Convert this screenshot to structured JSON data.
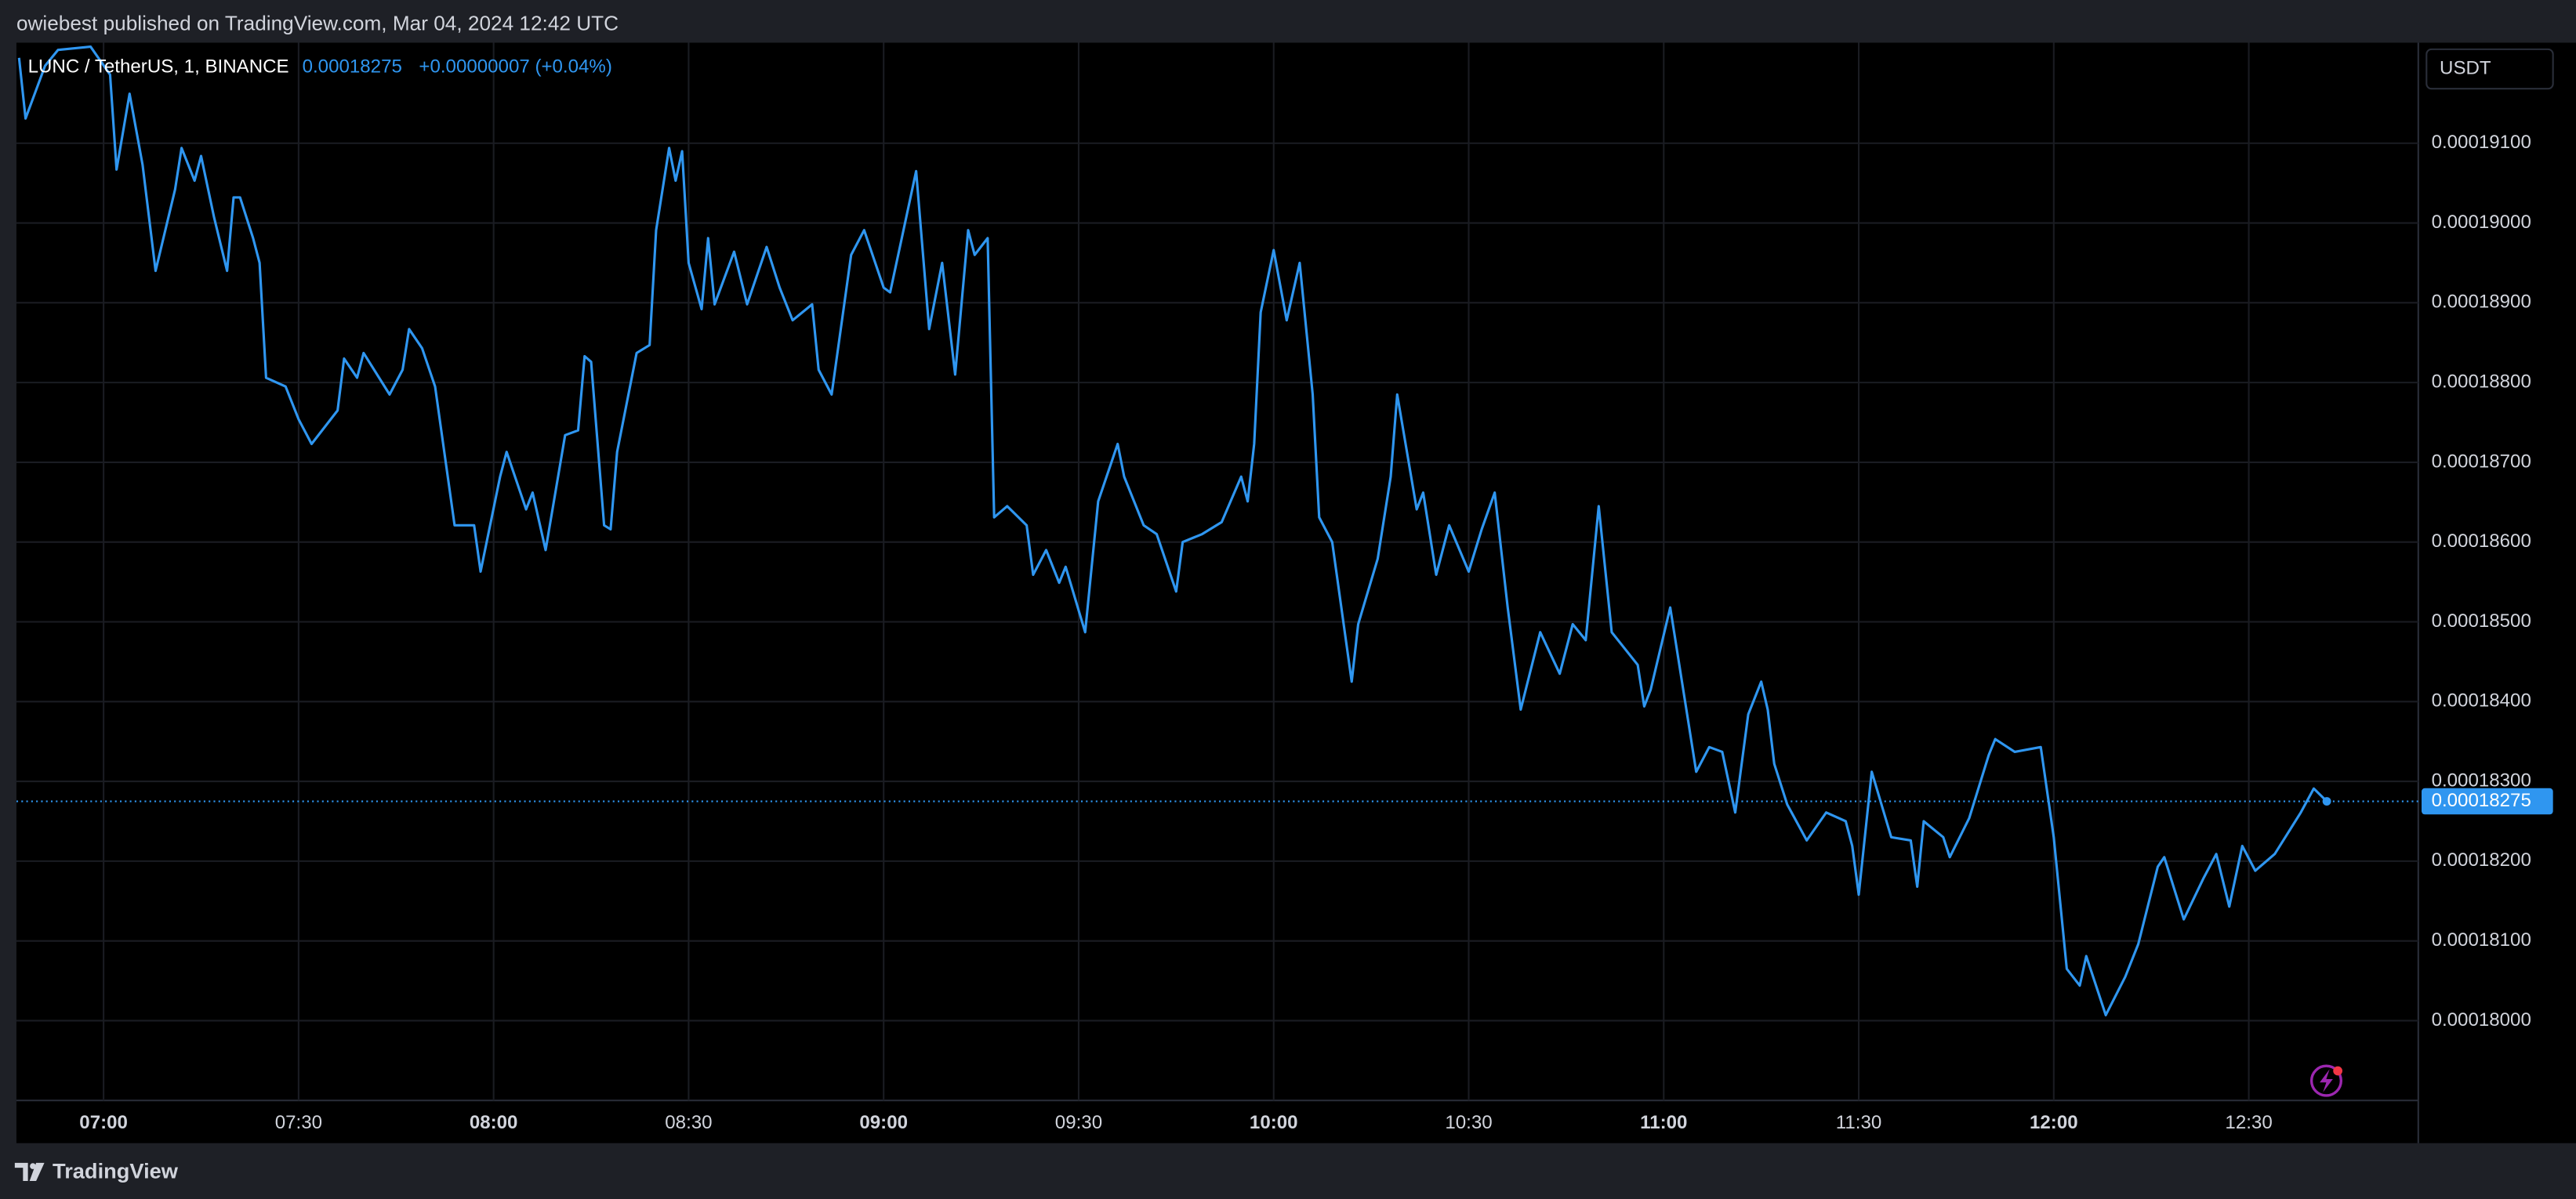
{
  "header": {
    "text": "owiebest published on TradingView.com, Mar 04, 2024 12:42 UTC"
  },
  "footer": {
    "brand": "TradingView"
  },
  "chart_data": {
    "type": "line",
    "symbol": "LUNC / TetherUS, 1, BINANCE",
    "last_price": 0.00018275,
    "change": "+0.00000007 (+0.04%)",
    "currency": "USDT",
    "x": [
      "06:47",
      "06:48",
      "06:51",
      "06:53",
      "06:58",
      "07:01",
      "07:02",
      "07:04",
      "07:06",
      "07:08",
      "07:11",
      "07:12",
      "07:14",
      "07:15",
      "07:17",
      "07:19",
      "07:20",
      "07:21",
      "07:23",
      "07:24",
      "07:25",
      "07:28",
      "07:30",
      "07:32",
      "07:36",
      "07:37",
      "07:39",
      "07:40",
      "07:44",
      "07:46",
      "07:47",
      "07:49",
      "07:51",
      "07:54",
      "07:57",
      "07:58",
      "08:01",
      "08:02",
      "08:05",
      "08:06",
      "08:08",
      "08:11",
      "08:13",
      "08:14",
      "08:15",
      "08:17",
      "08:18",
      "08:19",
      "08:22",
      "08:24",
      "08:25",
      "08:27",
      "08:28",
      "08:29",
      "08:30",
      "08:32",
      "08:33",
      "08:34",
      "08:37",
      "08:39",
      "08:42",
      "08:44",
      "08:46",
      "08:49",
      "08:50",
      "08:52",
      "08:55",
      "08:57",
      "09:00",
      "09:01",
      "09:05",
      "09:07",
      "09:09",
      "09:11",
      "09:13",
      "09:14",
      "09:16",
      "09:17",
      "09:19",
      "09:22",
      "09:23",
      "09:25",
      "09:27",
      "09:28",
      "09:31",
      "09:33",
      "09:36",
      "09:37",
      "09:40",
      "09:42",
      "09:45",
      "09:46",
      "09:49",
      "09:52",
      "09:55",
      "09:56",
      "09:57",
      "09:58",
      "10:00",
      "10:02",
      "10:04",
      "10:06",
      "10:07",
      "10:09",
      "10:12",
      "10:13",
      "10:16",
      "10:18",
      "10:19",
      "10:22",
      "10:23",
      "10:25",
      "10:27",
      "10:30",
      "10:32",
      "10:34",
      "10:36",
      "10:38",
      "10:41",
      "10:44",
      "10:46",
      "10:48",
      "10:50",
      "10:52",
      "10:56",
      "10:57",
      "10:58",
      "11:01",
      "11:05",
      "11:07",
      "11:09",
      "11:11",
      "11:13",
      "11:15",
      "11:16",
      "11:17",
      "11:19",
      "11:22",
      "11:25",
      "11:28",
      "11:29",
      "11:30",
      "11:32",
      "11:35",
      "11:38",
      "11:39",
      "11:40",
      "11:43",
      "11:44",
      "11:47",
      "11:50",
      "11:51",
      "11:54",
      "11:58",
      "12:00",
      "12:02",
      "12:04",
      "12:05",
      "12:08",
      "12:11",
      "12:13",
      "12:16",
      "12:17",
      "12:20",
      "12:23",
      "12:25",
      "12:27",
      "12:29",
      "12:31",
      "12:34",
      "12:38",
      "12:40",
      "12:42"
    ],
    "series": [
      {
        "color": "#2f96f0",
        "values": [
          0.00019207,
          0.00019131,
          0.00019197,
          0.00019217,
          0.00019221,
          0.00019186,
          0.00019067,
          0.00019162,
          0.00019073,
          0.0001894,
          0.00019042,
          0.00019094,
          0.00019053,
          0.00019084,
          0.00019007,
          0.0001894,
          0.00019032,
          0.00019032,
          0.00018981,
          0.0001895,
          0.00018806,
          0.00018795,
          0.00018754,
          0.00018723,
          0.00018765,
          0.0001883,
          0.00018806,
          0.00018837,
          0.00018785,
          0.00018816,
          0.00018867,
          0.00018843,
          0.00018795,
          0.00018621,
          0.00018621,
          0.00018563,
          0.00018682,
          0.00018713,
          0.00018641,
          0.00018662,
          0.0001859,
          0.00018734,
          0.0001874,
          0.00018833,
          0.00018826,
          0.00018621,
          0.00018616,
          0.00018713,
          0.00018837,
          0.00018847,
          0.00018991,
          0.00019094,
          0.00019053,
          0.0001909,
          0.0001895,
          0.00018892,
          0.00018981,
          0.00018898,
          0.00018964,
          0.00018898,
          0.0001897,
          0.00018919,
          0.00018878,
          0.00018898,
          0.00018816,
          0.00018785,
          0.0001896,
          0.00018991,
          0.00018919,
          0.00018913,
          0.00019065,
          0.00018867,
          0.0001895,
          0.0001881,
          0.00018991,
          0.0001896,
          0.00018981,
          0.00018631,
          0.00018645,
          0.00018621,
          0.00018559,
          0.0001859,
          0.00018549,
          0.00018569,
          0.00018487,
          0.00018651,
          0.00018723,
          0.00018682,
          0.00018621,
          0.0001861,
          0.00018538,
          0.000186,
          0.0001861,
          0.00018625,
          0.00018682,
          0.00018651,
          0.00018723,
          0.00018888,
          0.00018966,
          0.00018878,
          0.0001895,
          0.00018785,
          0.00018631,
          0.000186,
          0.00018425,
          0.00018497,
          0.00018579,
          0.00018682,
          0.00018785,
          0.00018641,
          0.00018662,
          0.00018559,
          0.00018621,
          0.00018563,
          0.00018616,
          0.00018662,
          0.00018518,
          0.0001839,
          0.00018487,
          0.00018435,
          0.00018497,
          0.00018477,
          0.00018645,
          0.00018487,
          0.00018446,
          0.00018394,
          0.00018415,
          0.00018518,
          0.00018312,
          0.00018343,
          0.00018337,
          0.00018261,
          0.00018384,
          0.00018425,
          0.0001839,
          0.00018322,
          0.00018271,
          0.00018226,
          0.00018261,
          0.0001825,
          0.00018219,
          0.00018158,
          0.00018312,
          0.0001823,
          0.00018226,
          0.00018168,
          0.0001825,
          0.0001823,
          0.00018205,
          0.00018254,
          0.00018333,
          0.00018353,
          0.00018337,
          0.00018343,
          0.0001823,
          0.00018065,
          0.00018044,
          0.00018081,
          0.00018007,
          0.00018055,
          0.00018096,
          0.00018193,
          0.00018205,
          0.00018127,
          0.00018178,
          0.00018209,
          0.00018143,
          0.00018219,
          0.00018188,
          0.00018209,
          0.00018261,
          0.00018291,
          0.00018275
        ]
      }
    ],
    "xlim": [
      "06:47",
      "12:56"
    ],
    "xticks": [
      "07:00",
      "07:30",
      "08:00",
      "08:30",
      "09:00",
      "09:30",
      "10:00",
      "10:30",
      "11:00",
      "11:30",
      "12:00",
      "12:30"
    ],
    "ylim": [
      0.000179,
      0.00019226
    ],
    "yticks": [
      {
        "value": 0.00018,
        "label": "0.00018000"
      },
      {
        "value": 0.000181,
        "label": "0.00018100"
      },
      {
        "value": 0.000182,
        "label": "0.00018200"
      },
      {
        "value": 0.000183,
        "label": "0.00018300"
      },
      {
        "value": 0.000184,
        "label": "0.00018400"
      },
      {
        "value": 0.000185,
        "label": "0.00018500"
      },
      {
        "value": 0.000186,
        "label": "0.00018600"
      },
      {
        "value": 0.000187,
        "label": "0.00018700"
      },
      {
        "value": 0.000188,
        "label": "0.00018800"
      },
      {
        "value": 0.000189,
        "label": "0.00018900"
      },
      {
        "value": 0.00019,
        "label": "0.00019000"
      },
      {
        "value": 0.000191,
        "label": "0.00019100"
      }
    ],
    "grid": true
  }
}
